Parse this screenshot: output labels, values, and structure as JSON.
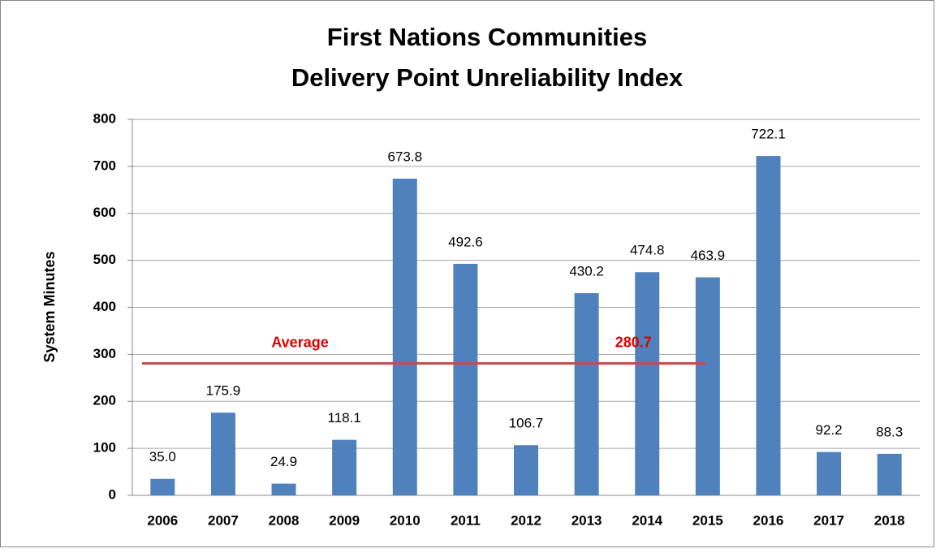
{
  "chart_data": {
    "type": "bar",
    "title": "First Nations Communities",
    "subtitle": "Delivery Point Unreliability Index",
    "y_label": "System Minutes",
    "categories": [
      "2006",
      "2007",
      "2008",
      "2009",
      "2010",
      "2011",
      "2012",
      "2013",
      "2014",
      "2015",
      "2016",
      "2017",
      "2018"
    ],
    "values": [
      35.0,
      175.9,
      24.9,
      118.1,
      673.8,
      492.6,
      106.7,
      430.2,
      474.8,
      463.9,
      722.1,
      92.2,
      88.3
    ],
    "value_labels": [
      "35.0",
      "175.9",
      "24.9",
      "118.1",
      "673.8",
      "492.6",
      "106.7",
      "430.2",
      "474.8",
      "463.9",
      "722.1",
      "92.2",
      "88.3"
    ],
    "color": "#4f81bd",
    "average": {
      "label": "Average",
      "value": 280.7,
      "color": "#c0504d"
    },
    "ylim": [
      0,
      800
    ],
    "yticks": [
      0,
      100,
      200,
      300,
      400,
      500,
      600,
      700,
      800
    ],
    "grid": true
  }
}
